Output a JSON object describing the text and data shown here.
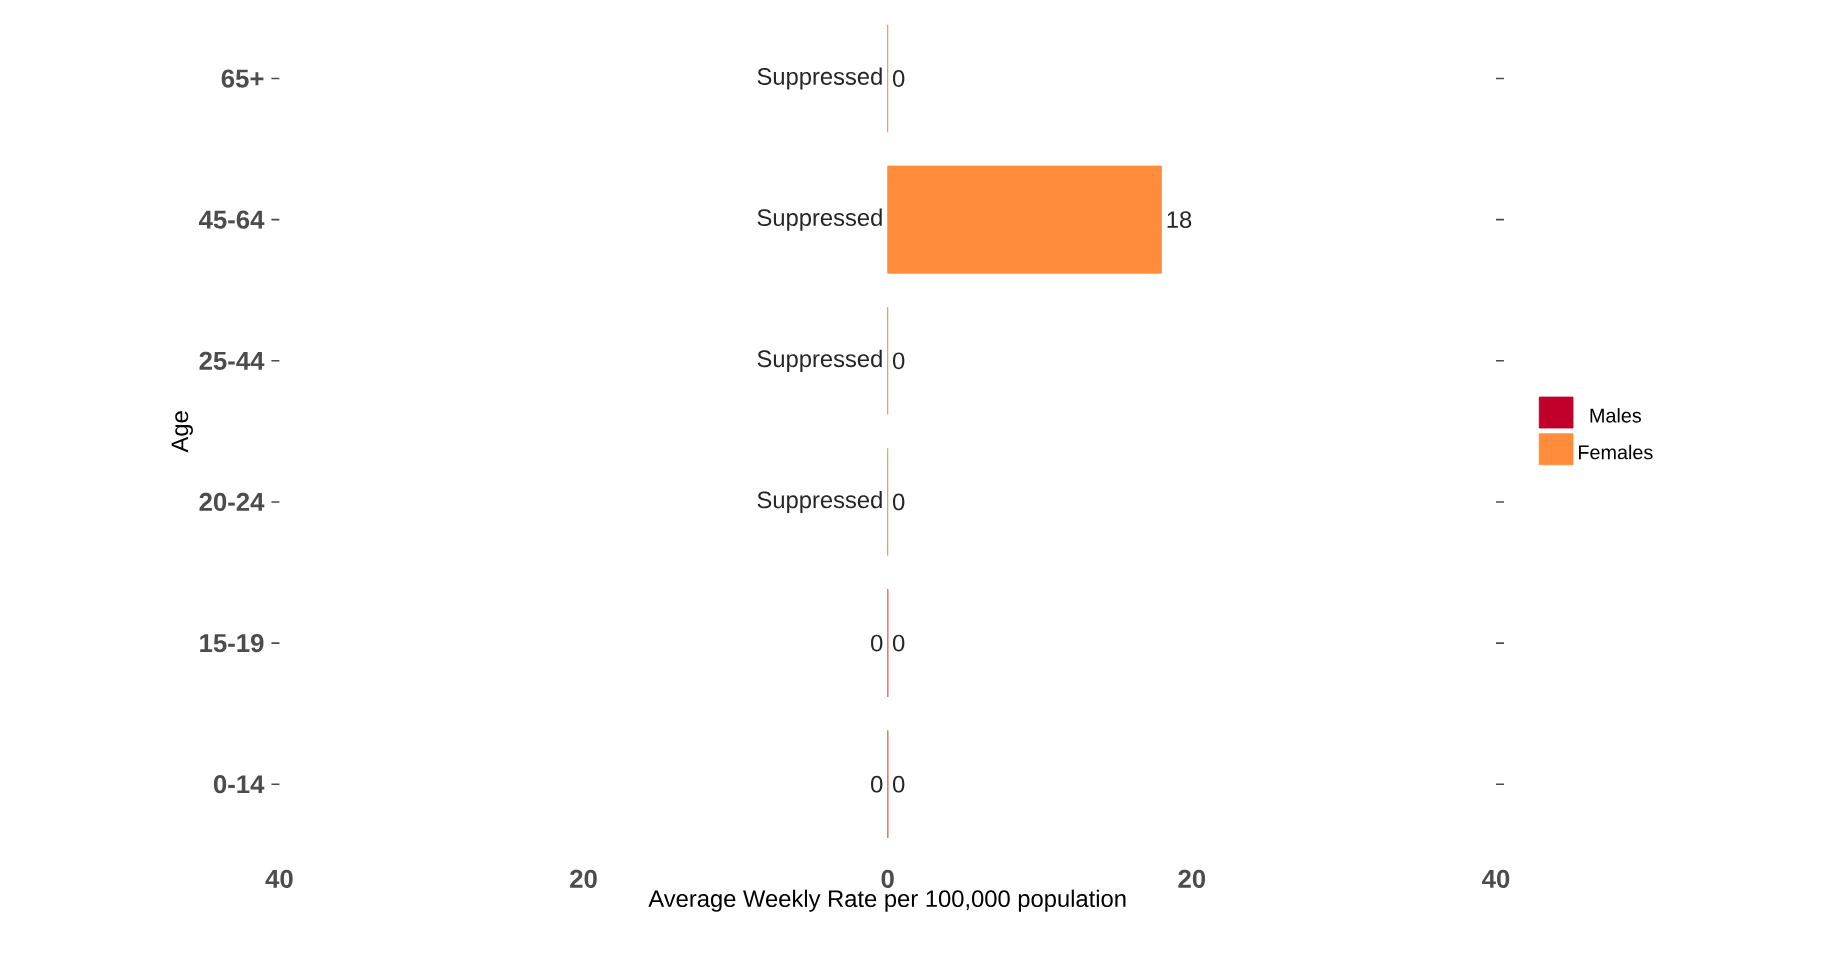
{
  "chart_data": {
    "type": "bar",
    "orientation": "horizontal",
    "xlabel": "Average Weekly Rate per 100,000 population",
    "ylabel": "Age",
    "categories": [
      "65+",
      "45-64",
      "25-44",
      "20-24",
      "15-19",
      "0-14"
    ],
    "series": [
      {
        "name": "Males",
        "color": "#c0002a",
        "values": [
          null,
          null,
          null,
          null,
          0,
          0
        ],
        "value_labels": [
          "Suppressed",
          "Suppressed",
          "Suppressed",
          "Suppressed",
          "0",
          "0"
        ]
      },
      {
        "name": "Females",
        "color": "#ff8c3a",
        "values": [
          0,
          18,
          0,
          0,
          0,
          0
        ],
        "value_labels": [
          "0",
          "18",
          "0",
          "0",
          "0",
          "0"
        ]
      }
    ],
    "xlim": [
      -40,
      40
    ],
    "xticks": [
      {
        "value": -40,
        "label": "40"
      },
      {
        "value": -20,
        "label": "20"
      },
      0,
      20,
      {
        "value": 40,
        "label": "40"
      }
    ],
    "legend": "right",
    "grid": false
  }
}
